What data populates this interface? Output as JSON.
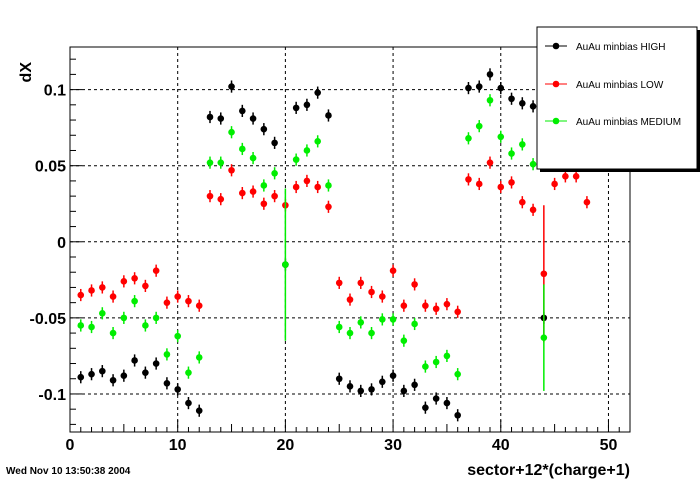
{
  "timestamp": "Wed Nov 10 13:50:38 2004",
  "chart_data": {
    "type": "scatter",
    "title": "",
    "xlabel": "sector+12*(charge+1)",
    "ylabel": "dX",
    "xlim": [
      0,
      52
    ],
    "ylim": [
      -0.125,
      0.128
    ],
    "xticks": [
      0,
      10,
      20,
      30,
      40,
      50
    ],
    "xtick_labels": [
      "0",
      "10",
      "20",
      "30",
      "40",
      "50"
    ],
    "yticks": [
      -0.1,
      -0.05,
      0,
      0.05,
      0.1
    ],
    "ytick_labels": [
      "-0.1",
      "-0.05",
      "0",
      "0.05",
      "0.1"
    ],
    "grid": true,
    "legend_position": "top-right",
    "series": [
      {
        "name": "AuAu minbias HIGH",
        "color": "#000000",
        "x": [
          1,
          2,
          3,
          4,
          5,
          6,
          7,
          8,
          9,
          10,
          11,
          12,
          13,
          14,
          15,
          16,
          17,
          18,
          19,
          20,
          21,
          22,
          23,
          24,
          25,
          26,
          27,
          28,
          29,
          30,
          31,
          32,
          33,
          34,
          35,
          36,
          37,
          38,
          39,
          40,
          41,
          42,
          43,
          44
        ],
        "y": [
          -0.089,
          -0.087,
          -0.085,
          -0.091,
          -0.088,
          -0.078,
          -0.086,
          -0.08,
          -0.093,
          -0.097,
          -0.106,
          -0.111,
          0.082,
          0.081,
          0.102,
          0.086,
          0.081,
          0.074,
          0.065,
          -0.015,
          0.088,
          0.09,
          0.098,
          0.083,
          -0.09,
          -0.095,
          -0.098,
          -0.097,
          -0.092,
          -0.088,
          -0.098,
          -0.094,
          -0.109,
          -0.103,
          -0.106,
          -0.114,
          0.101,
          0.102,
          0.11,
          0.101,
          0.094,
          0.091,
          0.089,
          -0.05
        ],
        "yerr": [
          0.004,
          0.004,
          0.004,
          0.004,
          0.004,
          0.004,
          0.004,
          0.004,
          0.004,
          0.004,
          0.004,
          0.004,
          0.004,
          0.004,
          0.004,
          0.004,
          0.004,
          0.004,
          0.004,
          0.004,
          0.004,
          0.004,
          0.004,
          0.004,
          0.004,
          0.004,
          0.004,
          0.004,
          0.004,
          0.004,
          0.004,
          0.004,
          0.004,
          0.004,
          0.004,
          0.004,
          0.004,
          0.004,
          0.004,
          0.004,
          0.004,
          0.004,
          0.004,
          0.004
        ]
      },
      {
        "name": "AuAu minbias LOW",
        "color": "#ff0000",
        "x": [
          1,
          2,
          3,
          4,
          5,
          6,
          7,
          8,
          9,
          10,
          11,
          12,
          13,
          14,
          15,
          16,
          17,
          18,
          19,
          20,
          21,
          22,
          23,
          24,
          25,
          26,
          27,
          28,
          29,
          30,
          31,
          32,
          33,
          34,
          35,
          36,
          37,
          38,
          39,
          40,
          41,
          42,
          43,
          44,
          45,
          46,
          47,
          48
        ],
        "y": [
          -0.035,
          -0.032,
          -0.03,
          -0.036,
          -0.026,
          -0.024,
          -0.029,
          -0.019,
          -0.04,
          -0.036,
          -0.039,
          -0.042,
          0.03,
          0.028,
          0.047,
          0.032,
          0.033,
          0.025,
          0.03,
          0.024,
          0.036,
          0.04,
          0.036,
          0.023,
          -0.027,
          -0.038,
          -0.027,
          -0.033,
          -0.036,
          -0.019,
          -0.042,
          -0.028,
          -0.042,
          -0.044,
          -0.041,
          -0.046,
          0.041,
          0.038,
          0.052,
          0.036,
          0.039,
          0.026,
          0.021,
          -0.021,
          0.038,
          0.043,
          0.043,
          0.026
        ],
        "yerr": [
          0.004,
          0.004,
          0.004,
          0.004,
          0.004,
          0.004,
          0.004,
          0.004,
          0.004,
          0.004,
          0.004,
          0.004,
          0.004,
          0.004,
          0.004,
          0.004,
          0.004,
          0.004,
          0.004,
          0.004,
          0.004,
          0.004,
          0.004,
          0.004,
          0.004,
          0.004,
          0.004,
          0.004,
          0.004,
          0.004,
          0.004,
          0.004,
          0.004,
          0.004,
          0.004,
          0.004,
          0.004,
          0.004,
          0.004,
          0.004,
          0.004,
          0.004,
          0.004,
          0.045,
          0.004,
          0.004,
          0.004,
          0.004
        ]
      },
      {
        "name": "AuAu minbias MEDIUM",
        "color": "#00ee00",
        "x": [
          1,
          2,
          3,
          4,
          5,
          6,
          7,
          8,
          9,
          10,
          11,
          12,
          13,
          14,
          15,
          16,
          17,
          18,
          19,
          20,
          21,
          22,
          23,
          24,
          25,
          26,
          27,
          28,
          29,
          30,
          31,
          32,
          33,
          34,
          35,
          36,
          37,
          38,
          39,
          40,
          41,
          42,
          43,
          44
        ],
        "y": [
          -0.055,
          -0.056,
          -0.047,
          -0.06,
          -0.05,
          -0.039,
          -0.055,
          -0.05,
          -0.074,
          -0.062,
          -0.086,
          -0.076,
          0.052,
          0.052,
          0.072,
          0.061,
          0.055,
          0.037,
          0.045,
          -0.015,
          0.054,
          0.06,
          0.066,
          0.037,
          -0.056,
          -0.06,
          -0.053,
          -0.06,
          -0.051,
          -0.051,
          -0.065,
          -0.054,
          -0.082,
          -0.079,
          -0.075,
          -0.087,
          0.068,
          0.076,
          0.093,
          0.069,
          0.058,
          0.064,
          0.051,
          -0.063
        ],
        "yerr": [
          0.004,
          0.004,
          0.004,
          0.004,
          0.004,
          0.004,
          0.004,
          0.004,
          0.004,
          0.004,
          0.004,
          0.004,
          0.004,
          0.004,
          0.004,
          0.004,
          0.004,
          0.004,
          0.004,
          0.05,
          0.004,
          0.004,
          0.004,
          0.004,
          0.004,
          0.004,
          0.004,
          0.004,
          0.004,
          0.004,
          0.004,
          0.004,
          0.004,
          0.004,
          0.004,
          0.004,
          0.004,
          0.004,
          0.004,
          0.004,
          0.004,
          0.004,
          0.004,
          0.035
        ]
      }
    ]
  }
}
